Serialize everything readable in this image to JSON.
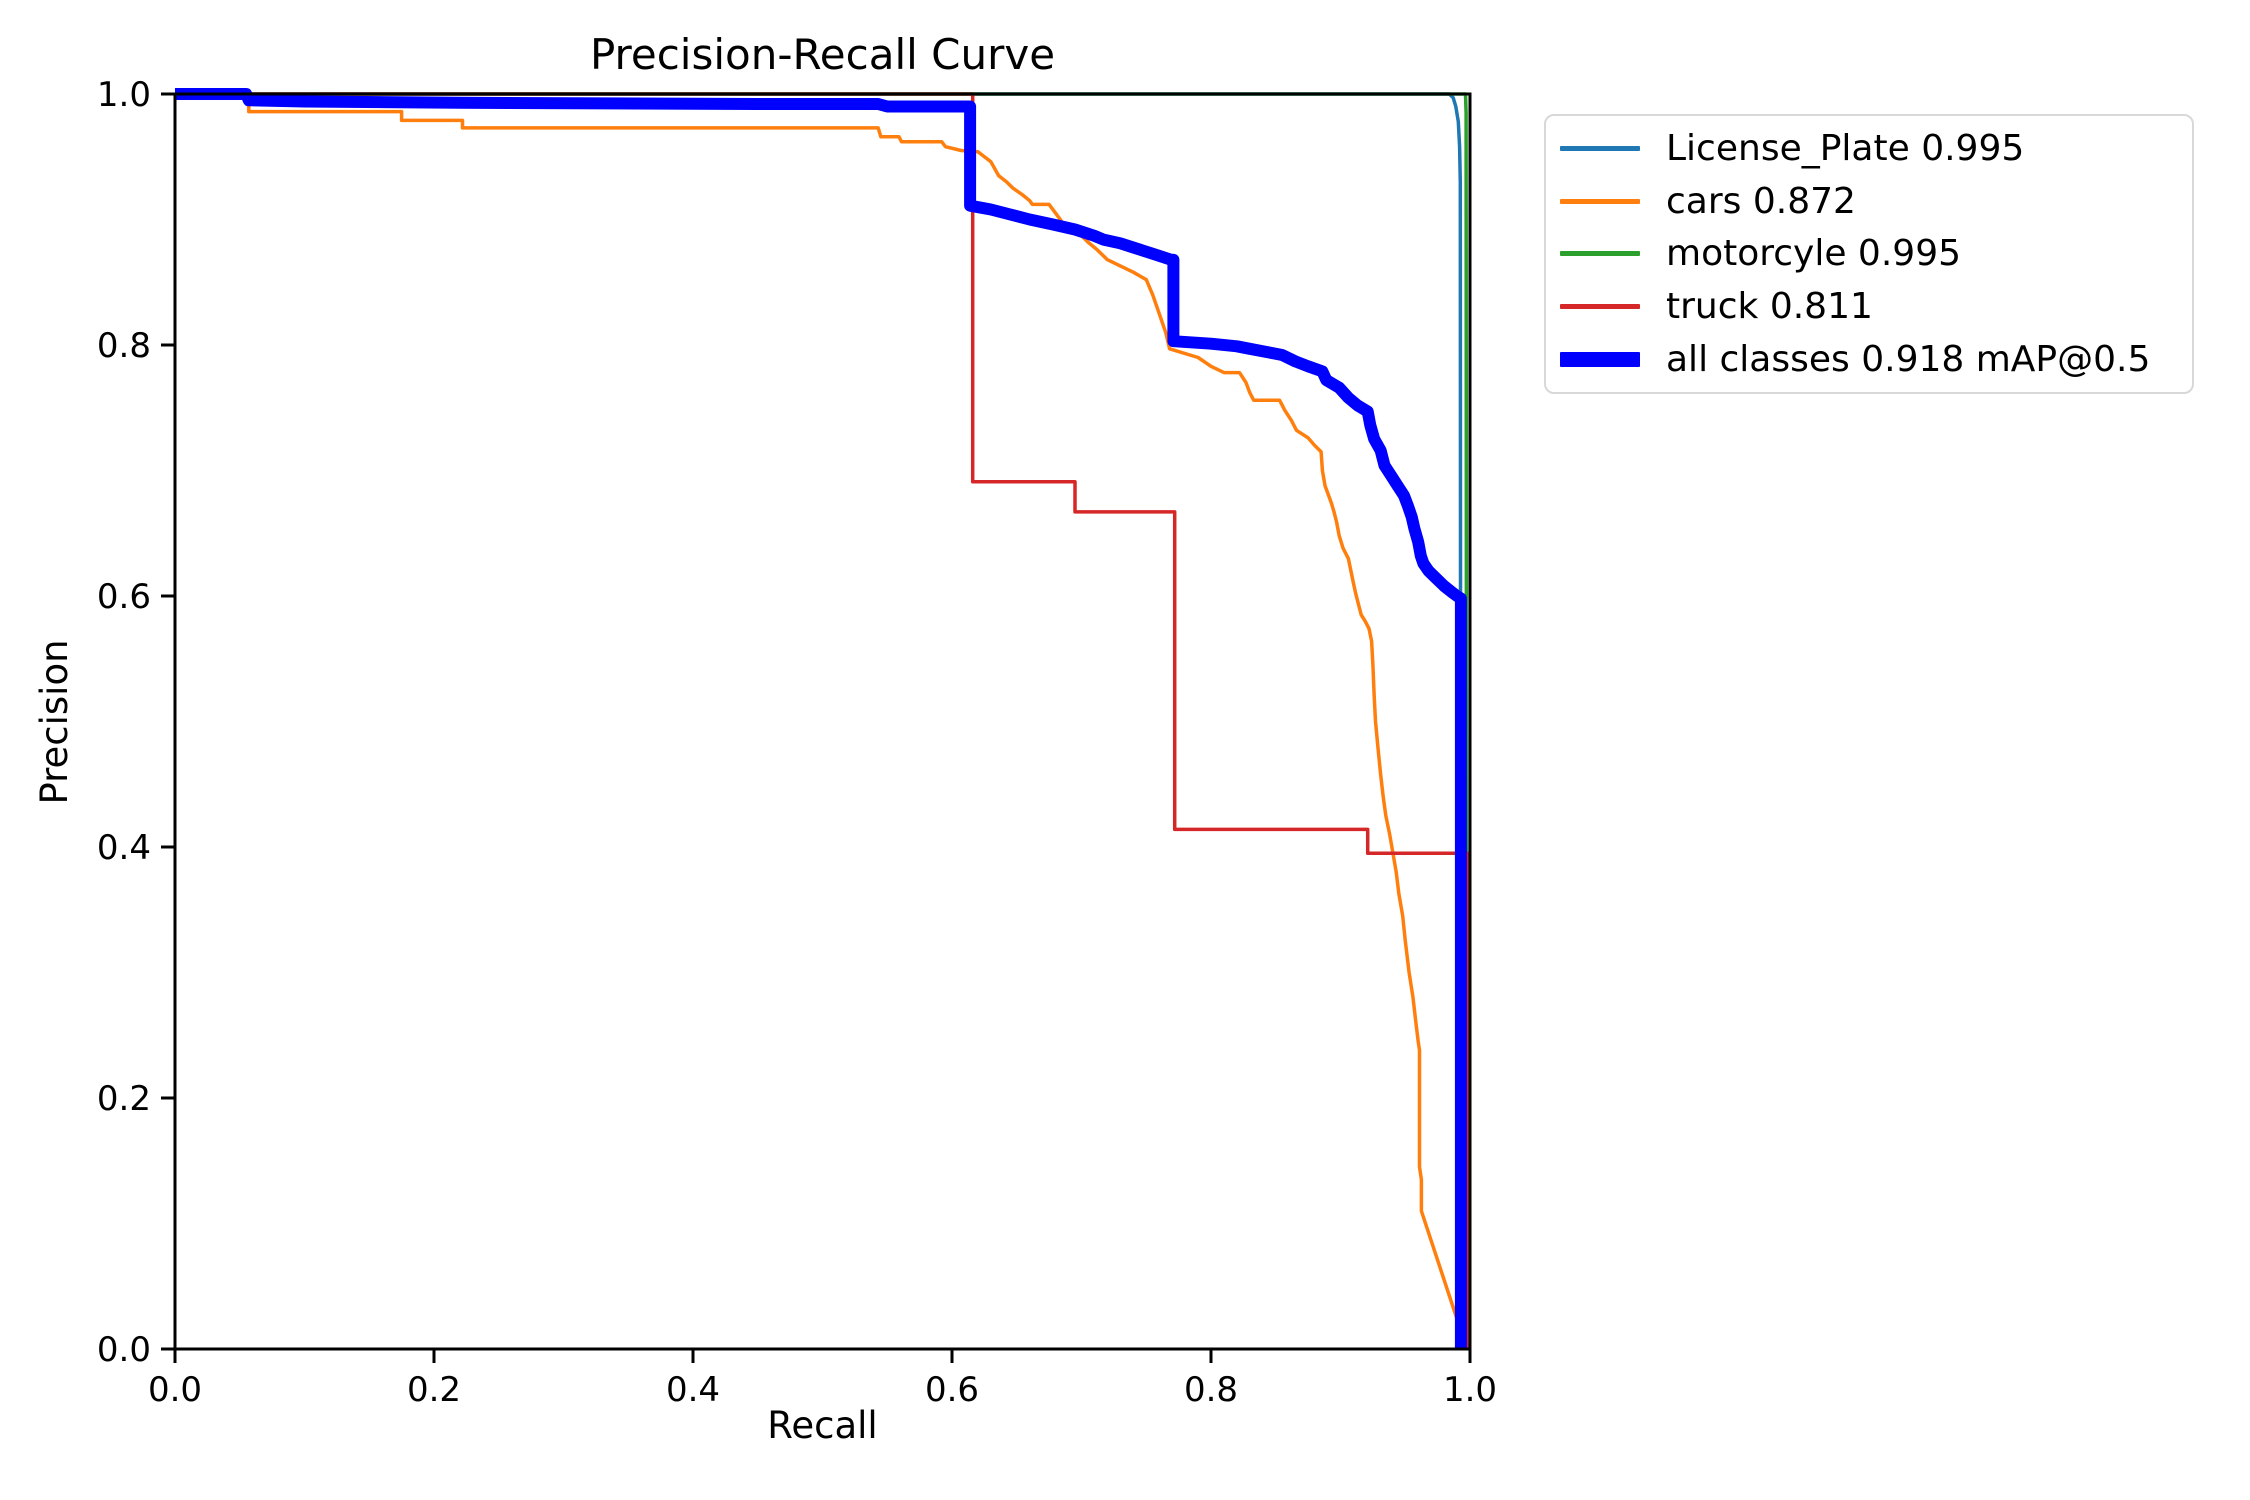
{
  "chart_data": {
    "type": "line",
    "title": "Precision-Recall Curve",
    "xlabel": "Recall",
    "ylabel": "Precision",
    "xlim": [
      0.0,
      1.0
    ],
    "ylim": [
      0.0,
      1.0
    ],
    "x_ticks": [
      "0.0",
      "0.2",
      "0.4",
      "0.6",
      "0.8",
      "1.0"
    ],
    "y_ticks": [
      "0.0",
      "0.2",
      "0.4",
      "0.6",
      "0.8",
      "1.0"
    ],
    "grid": false,
    "legend_position": "upper-right-outside",
    "series": [
      {
        "name": "License_Plate",
        "legend_label": "License_Plate 0.995",
        "ap": 0.995,
        "color": "#1f77b4",
        "line_width": 3.5,
        "points": [
          [
            0,
            1.0
          ],
          [
            0.984,
            1.0
          ],
          [
            0.987,
            0.997
          ],
          [
            0.989,
            0.99
          ],
          [
            0.991,
            0.978
          ],
          [
            0.992,
            0.958
          ],
          [
            0.9925,
            0.93
          ],
          [
            0.993,
            0.0
          ]
        ]
      },
      {
        "name": "cars",
        "legend_label": "cars 0.872",
        "ap": 0.872,
        "color": "#ff7f0e",
        "line_width": 3.5,
        "points": [
          [
            0,
            1.0
          ],
          [
            0.057,
            1.0
          ],
          [
            0.057,
            0.986
          ],
          [
            0.175,
            0.986
          ],
          [
            0.175,
            0.979
          ],
          [
            0.222,
            0.979
          ],
          [
            0.222,
            0.973
          ],
          [
            0.543,
            0.973
          ],
          [
            0.545,
            0.966
          ],
          [
            0.559,
            0.966
          ],
          [
            0.561,
            0.962
          ],
          [
            0.592,
            0.962
          ],
          [
            0.595,
            0.958
          ],
          [
            0.607,
            0.955
          ],
          [
            0.62,
            0.954
          ],
          [
            0.625,
            0.95
          ],
          [
            0.63,
            0.946
          ],
          [
            0.636,
            0.935
          ],
          [
            0.642,
            0.93
          ],
          [
            0.647,
            0.925
          ],
          [
            0.654,
            0.92
          ],
          [
            0.66,
            0.915
          ],
          [
            0.662,
            0.912
          ],
          [
            0.675,
            0.912
          ],
          [
            0.68,
            0.905
          ],
          [
            0.685,
            0.898
          ],
          [
            0.69,
            0.89
          ],
          [
            0.7,
            0.887
          ],
          [
            0.705,
            0.882
          ],
          [
            0.712,
            0.876
          ],
          [
            0.72,
            0.868
          ],
          [
            0.73,
            0.863
          ],
          [
            0.74,
            0.858
          ],
          [
            0.75,
            0.852
          ],
          [
            0.755,
            0.84
          ],
          [
            0.76,
            0.825
          ],
          [
            0.765,
            0.81
          ],
          [
            0.768,
            0.797
          ],
          [
            0.79,
            0.79
          ],
          [
            0.8,
            0.783
          ],
          [
            0.81,
            0.778
          ],
          [
            0.822,
            0.778
          ],
          [
            0.827,
            0.77
          ],
          [
            0.83,
            0.762
          ],
          [
            0.833,
            0.756
          ],
          [
            0.853,
            0.756
          ],
          [
            0.857,
            0.748
          ],
          [
            0.862,
            0.74
          ],
          [
            0.866,
            0.732
          ],
          [
            0.875,
            0.726
          ],
          [
            0.88,
            0.72
          ],
          [
            0.885,
            0.715
          ],
          [
            0.886,
            0.7
          ],
          [
            0.888,
            0.688
          ],
          [
            0.893,
            0.674
          ],
          [
            0.895,
            0.667
          ],
          [
            0.897,
            0.659
          ],
          [
            0.899,
            0.648
          ],
          [
            0.902,
            0.638
          ],
          [
            0.906,
            0.63
          ],
          [
            0.908,
            0.62
          ],
          [
            0.91,
            0.61
          ],
          [
            0.912,
            0.601
          ],
          [
            0.914,
            0.593
          ],
          [
            0.916,
            0.585
          ],
          [
            0.919,
            0.58
          ],
          [
            0.922,
            0.574
          ],
          [
            0.924,
            0.564
          ],
          [
            0.925,
            0.545
          ],
          [
            0.926,
            0.52
          ],
          [
            0.927,
            0.5
          ],
          [
            0.929,
            0.478
          ],
          [
            0.931,
            0.458
          ],
          [
            0.933,
            0.44
          ],
          [
            0.935,
            0.425
          ],
          [
            0.938,
            0.41
          ],
          [
            0.94,
            0.398
          ],
          [
            0.943,
            0.38
          ],
          [
            0.945,
            0.363
          ],
          [
            0.948,
            0.345
          ],
          [
            0.95,
            0.325
          ],
          [
            0.953,
            0.3
          ],
          [
            0.956,
            0.28
          ],
          [
            0.958,
            0.262
          ],
          [
            0.96,
            0.245
          ],
          [
            0.961,
            0.238
          ],
          [
            0.961,
            0.145
          ],
          [
            0.9625,
            0.135
          ],
          [
            0.9625,
            0.11
          ],
          [
            0.996,
            0.005
          ]
        ]
      },
      {
        "name": "motorcyle",
        "legend_label": "motorcyle 0.995",
        "ap": 0.995,
        "color": "#2ca02c",
        "line_width": 3.5,
        "points": [
          [
            0,
            1.0
          ],
          [
            0.9965,
            1.0
          ],
          [
            0.997,
            0.985
          ],
          [
            0.9975,
            0.0
          ]
        ]
      },
      {
        "name": "truck",
        "legend_label": "truck 0.811",
        "ap": 0.811,
        "color": "#d62728",
        "line_width": 3.5,
        "points": [
          [
            0,
            1.0
          ],
          [
            0.616,
            1.0
          ],
          [
            0.616,
            0.691
          ],
          [
            0.695,
            0.691
          ],
          [
            0.695,
            0.667
          ],
          [
            0.772,
            0.667
          ],
          [
            0.772,
            0.414
          ],
          [
            0.921,
            0.414
          ],
          [
            0.921,
            0.395
          ],
          [
            0.998,
            0.395
          ],
          [
            0.998,
            0.0
          ]
        ]
      },
      {
        "name": "all classes",
        "legend_label": "all classes 0.918 mAP@0.5",
        "ap": 0.918,
        "map_threshold": "mAP@0.5",
        "color": "#0000ff",
        "line_width": 12,
        "points": [
          [
            0,
            1.0
          ],
          [
            0.055,
            1.0
          ],
          [
            0.057,
            0.995
          ],
          [
            0.1,
            0.994
          ],
          [
            0.22,
            0.993
          ],
          [
            0.45,
            0.992
          ],
          [
            0.543,
            0.992
          ],
          [
            0.55,
            0.99
          ],
          [
            0.614,
            0.99
          ],
          [
            0.614,
            0.911
          ],
          [
            0.63,
            0.908
          ],
          [
            0.645,
            0.904
          ],
          [
            0.66,
            0.9
          ],
          [
            0.678,
            0.896
          ],
          [
            0.695,
            0.892
          ],
          [
            0.71,
            0.887
          ],
          [
            0.717,
            0.884
          ],
          [
            0.73,
            0.881
          ],
          [
            0.745,
            0.876
          ],
          [
            0.757,
            0.872
          ],
          [
            0.769,
            0.868
          ],
          [
            0.771,
            0.868
          ],
          [
            0.771,
            0.803
          ],
          [
            0.8,
            0.801
          ],
          [
            0.82,
            0.799
          ],
          [
            0.83,
            0.797
          ],
          [
            0.845,
            0.794
          ],
          [
            0.855,
            0.792
          ],
          [
            0.865,
            0.787
          ],
          [
            0.875,
            0.783
          ],
          [
            0.886,
            0.779
          ],
          [
            0.889,
            0.772
          ],
          [
            0.899,
            0.766
          ],
          [
            0.906,
            0.758
          ],
          [
            0.913,
            0.752
          ],
          [
            0.921,
            0.747
          ],
          [
            0.923,
            0.736
          ],
          [
            0.926,
            0.725
          ],
          [
            0.931,
            0.716
          ],
          [
            0.934,
            0.704
          ],
          [
            0.939,
            0.696
          ],
          [
            0.944,
            0.688
          ],
          [
            0.949,
            0.68
          ],
          [
            0.952,
            0.672
          ],
          [
            0.955,
            0.663
          ],
          [
            0.957,
            0.654
          ],
          [
            0.96,
            0.643
          ],
          [
            0.962,
            0.632
          ],
          [
            0.964,
            0.626
          ],
          [
            0.968,
            0.62
          ],
          [
            0.974,
            0.614
          ],
          [
            0.98,
            0.608
          ],
          [
            0.986,
            0.603
          ],
          [
            0.99,
            0.6
          ],
          [
            0.993,
            0.598
          ],
          [
            0.993,
            0.0
          ]
        ]
      }
    ]
  }
}
